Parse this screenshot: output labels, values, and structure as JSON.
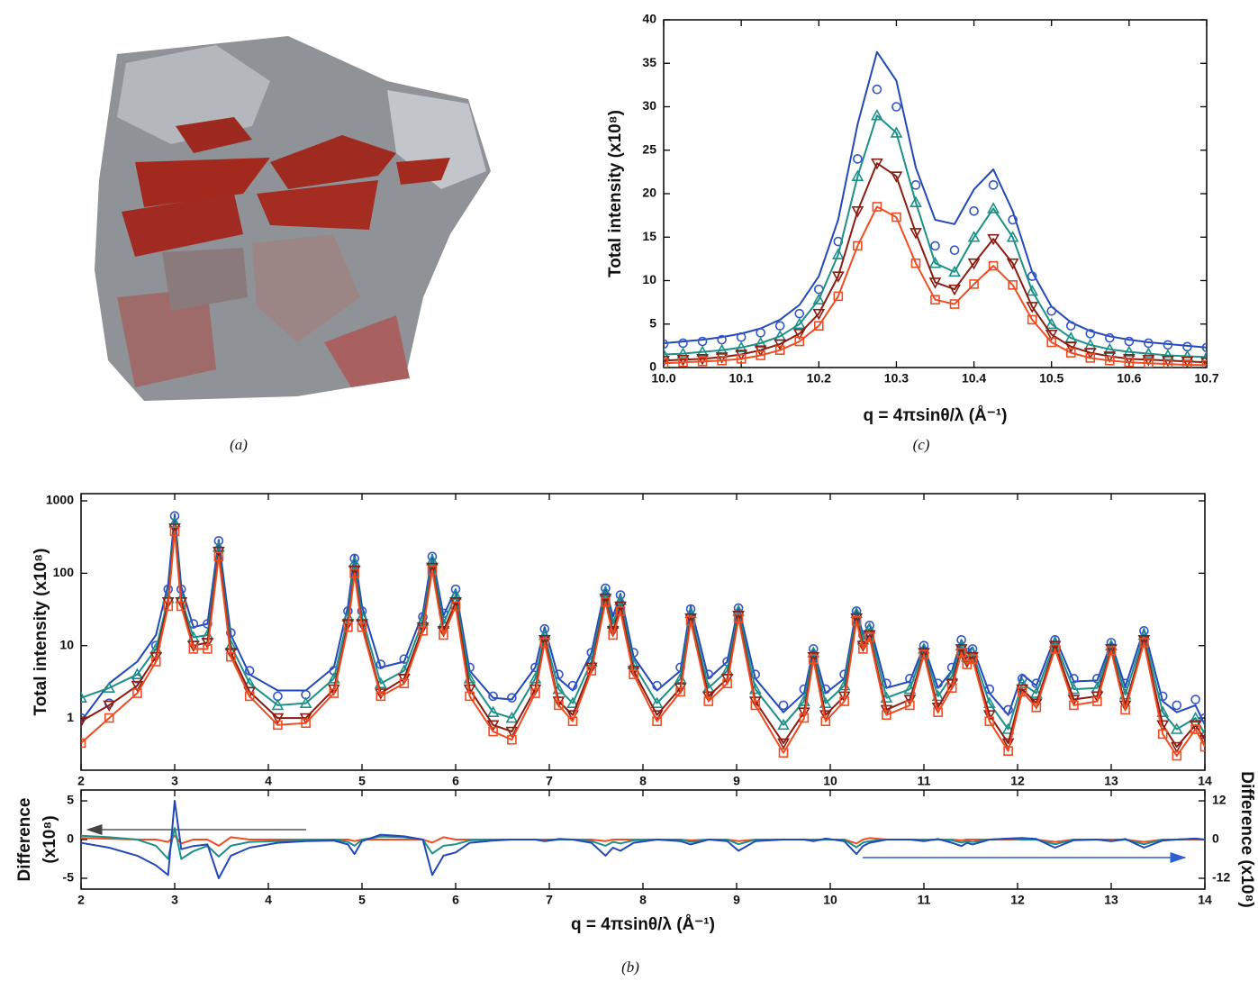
{
  "figure_a": {
    "caption": "(a)"
  },
  "chart_data": [
    {
      "type": "line",
      "caption": "(c)",
      "xlabel": "q = 4πsinθ/λ (Å⁻¹)",
      "ylabel": "Total intensity (x10⁸)",
      "xlim": [
        10.0,
        10.7
      ],
      "ylim": [
        0,
        40
      ],
      "xticks": [
        {
          "value": 10.0,
          "label": "10.0"
        },
        {
          "value": 10.1,
          "label": "10.1"
        },
        {
          "value": 10.2,
          "label": "10.2"
        },
        {
          "value": 10.3,
          "label": "10.3"
        },
        {
          "value": 10.4,
          "label": "10.4"
        },
        {
          "value": 10.5,
          "label": "10.5"
        },
        {
          "value": 10.6,
          "label": "10.6"
        },
        {
          "value": 10.7,
          "label": "10.7"
        }
      ],
      "yticks": [
        0,
        5,
        10,
        15,
        20,
        25,
        30,
        35,
        40
      ],
      "x": [
        10,
        10.025,
        10.05,
        10.075,
        10.1,
        10.125,
        10.15,
        10.175,
        10.2,
        10.225,
        10.25,
        10.275,
        10.3,
        10.325,
        10.35,
        10.375,
        10.4,
        10.425,
        10.45,
        10.475,
        10.5,
        10.525,
        10.55,
        10.575,
        10.6,
        10.625,
        10.65,
        10.675,
        10.7
      ],
      "series": [
        {
          "color": "#2348b8",
          "marker": "none",
          "line": true,
          "values": [
            2.8,
            3.0,
            3.2,
            3.5,
            3.9,
            4.5,
            5.5,
            7.2,
            10.5,
            17,
            28,
            36.3,
            33,
            23,
            17,
            16.5,
            20.5,
            22.8,
            18,
            11,
            7,
            5.2,
            4.2,
            3.6,
            3.2,
            2.9,
            2.7,
            2.5,
            2.3
          ]
        },
        {
          "color": "#3355c8",
          "marker": "circle",
          "line": false,
          "values": [
            2.7,
            2.8,
            3.0,
            3.2,
            3.5,
            4.0,
            4.8,
            6.2,
            9.0,
            14.5,
            24,
            32,
            30,
            21,
            14,
            13.5,
            18,
            21,
            17,
            10.5,
            6.5,
            4.8,
            3.9,
            3.4,
            3.0,
            2.8,
            2.6,
            2.4,
            2.3
          ]
        },
        {
          "color": "#1c9088",
          "marker": "triangle-up",
          "line": true,
          "values": [
            1.5,
            1.6,
            1.8,
            2.0,
            2.3,
            2.8,
            3.6,
            5.0,
            7.8,
            13,
            22,
            29,
            27,
            19,
            12,
            11,
            15,
            18.3,
            15,
            8.8,
            5.0,
            3.4,
            2.6,
            2.1,
            1.8,
            1.6,
            1.4,
            1.3,
            1.2
          ]
        },
        {
          "color": "#8a1c12",
          "marker": "triangle-down",
          "line": true,
          "values": [
            0.8,
            0.9,
            1.0,
            1.2,
            1.5,
            2.0,
            2.7,
            3.9,
            6.2,
            10.5,
            18,
            23.5,
            22,
            15.5,
            9.8,
            9.0,
            12,
            14.8,
            12,
            7.0,
            3.8,
            2.4,
            1.7,
            1.3,
            1.0,
            0.9,
            0.8,
            0.7,
            0.6
          ]
        },
        {
          "color": "#f04c22",
          "marker": "square",
          "line": true,
          "values": [
            0.5,
            0.6,
            0.7,
            0.8,
            1.0,
            1.4,
            2.0,
            3.0,
            4.8,
            8.2,
            14,
            18.5,
            17.3,
            12,
            7.8,
            7.3,
            9.6,
            11.7,
            9.5,
            5.5,
            2.9,
            1.7,
            1.1,
            0.8,
            0.6,
            0.5,
            0.4,
            0.3,
            0.3
          ]
        }
      ]
    },
    {
      "type": "line",
      "caption": "(b)",
      "ylabel": "Total intensity (x10⁸)",
      "ylog": true,
      "xlim": [
        2,
        14
      ],
      "ylim": [
        0.19,
        1258
      ],
      "xticks": [
        2,
        3,
        4,
        5,
        6,
        7,
        8,
        9,
        10,
        11,
        12,
        13,
        14
      ],
      "yticks": [
        1,
        10,
        100,
        1000
      ],
      "x": [
        2.0,
        2.3,
        2.6,
        2.8,
        2.93,
        3.0,
        3.07,
        3.2,
        3.35,
        3.47,
        3.6,
        3.8,
        4.1,
        4.4,
        4.7,
        4.85,
        4.92,
        5.0,
        5.2,
        5.45,
        5.65,
        5.75,
        5.87,
        6.0,
        6.15,
        6.4,
        6.6,
        6.85,
        6.95,
        7.1,
        7.25,
        7.45,
        7.6,
        7.68,
        7.76,
        7.9,
        8.15,
        8.4,
        8.51,
        8.7,
        8.9,
        9.02,
        9.2,
        9.5,
        9.72,
        9.82,
        9.95,
        10.15,
        10.28,
        10.35,
        10.42,
        10.6,
        10.85,
        11.0,
        11.15,
        11.3,
        11.4,
        11.46,
        11.52,
        11.7,
        11.9,
        12.05,
        12.2,
        12.4,
        12.6,
        12.85,
        13.0,
        13.15,
        13.35,
        13.55,
        13.7,
        13.9,
        14.0
      ],
      "series": [
        {
          "color": "#2348b8",
          "marker": "none",
          "line": true,
          "values": [
            0.9,
            3.0,
            6.0,
            14,
            70,
            650,
            65,
            18,
            20,
            290,
            14,
            4.0,
            2.4,
            2.4,
            5.0,
            35,
            180,
            35,
            5.0,
            6,
            28,
            180,
            26,
            60,
            4.5,
            1.9,
            1.8,
            5,
            18,
            3.5,
            2.4,
            8,
            65,
            25,
            52,
            7,
            2.4,
            4.5,
            35,
            3.5,
            6,
            35,
            3.5,
            1.2,
            2.2,
            9,
            2.2,
            3.5,
            32,
            14,
            20,
            2.6,
            3.2,
            10,
            2.6,
            4.5,
            12,
            8,
            9.5,
            2.2,
            1.1,
            4,
            2.8,
            13,
            3.2,
            3.3,
            11,
            2.7,
            17,
            1.7,
            1.2,
            1.5,
            0.8
          ]
        },
        {
          "color": "#3355c8",
          "marker": "circle",
          "line": false,
          "values": [
            1.0,
            1.6,
            3.5,
            10,
            60,
            620,
            60,
            20,
            20,
            280,
            15,
            4.5,
            2.0,
            2.1,
            4.5,
            30,
            160,
            30,
            5.5,
            6.5,
            25,
            170,
            28,
            60,
            5,
            2.0,
            1.9,
            5,
            17,
            4,
            2.8,
            8,
            62,
            25,
            50,
            8,
            2.8,
            5,
            32,
            4,
            6,
            33,
            4,
            1.5,
            2.5,
            9,
            2.5,
            4,
            30,
            14,
            19,
            3,
            3.5,
            10,
            3,
            5,
            12,
            8,
            9,
            2.5,
            1.3,
            3.5,
            3,
            12,
            3.5,
            3.5,
            11,
            3,
            16,
            2.0,
            1.5,
            1.8,
            1.0
          ]
        },
        {
          "color": "#1c9088",
          "marker": "triangle-up",
          "line": true,
          "values": [
            1.9,
            2.6,
            4.0,
            9,
            45,
            500,
            45,
            13,
            14,
            230,
            10,
            3.0,
            1.5,
            1.6,
            3.5,
            25,
            140,
            25,
            3.0,
            4.5,
            22,
            150,
            20,
            50,
            3.5,
            1.2,
            1.0,
            3.5,
            14,
            2.5,
            1.6,
            6,
            55,
            20,
            42,
            5.5,
            1.6,
            3.5,
            28,
            2.6,
            4.5,
            30,
            2.5,
            0.8,
            1.7,
            8,
            1.6,
            2.8,
            28,
            12,
            17,
            1.9,
            2.5,
            9,
            2.0,
            3.8,
            10,
            7,
            8,
            1.6,
            0.7,
            3.0,
            2.2,
            11,
            2.5,
            2.6,
            10,
            2.1,
            14,
            1.2,
            0.7,
            1.0,
            0.6
          ]
        },
        {
          "color": "#8a1c12",
          "marker": "triangle-down",
          "line": true,
          "values": [
            0.9,
            1.5,
            2.8,
            7,
            40,
            420,
            40,
            10,
            11,
            200,
            8,
            2.3,
            1.0,
            1.0,
            2.5,
            20,
            110,
            20,
            2.2,
            3.5,
            18,
            120,
            16,
            40,
            2.5,
            0.8,
            0.65,
            2.5,
            12,
            1.7,
            1.1,
            5,
            45,
            16,
            35,
            4.5,
            1.1,
            2.6,
            24,
            2.0,
            3.5,
            26,
            1.7,
            0.45,
            1.2,
            7,
            1.1,
            2.0,
            24,
            10,
            14,
            1.3,
            1.8,
            8,
            1.4,
            3.0,
            9,
            6,
            7,
            1.1,
            0.45,
            2.5,
            1.6,
            10,
            1.8,
            2.0,
            9,
            1.5,
            12,
            0.8,
            0.4,
            0.8,
            0.5
          ]
        },
        {
          "color": "#f04c22",
          "marker": "square",
          "line": true,
          "values": [
            0.45,
            1.0,
            2.2,
            6,
            35,
            380,
            35,
            9,
            9,
            170,
            7,
            2.0,
            0.8,
            0.85,
            2.2,
            18,
            100,
            18,
            2.0,
            3.0,
            16,
            110,
            14,
            35,
            2.0,
            0.65,
            0.5,
            2.2,
            11,
            1.5,
            0.9,
            4.5,
            40,
            14,
            30,
            4,
            0.9,
            2.3,
            22,
            1.7,
            3.0,
            24,
            1.5,
            0.33,
            1.0,
            6.5,
            0.9,
            1.7,
            22,
            9,
            13,
            1.1,
            1.5,
            7.5,
            1.2,
            2.6,
            8,
            5.5,
            6.5,
            0.9,
            0.35,
            2.3,
            1.4,
            9,
            1.5,
            1.7,
            8.5,
            1.3,
            11,
            0.6,
            0.3,
            0.7,
            0.4
          ]
        }
      ]
    },
    {
      "type": "line",
      "xlabel": "q = 4πsinθ/λ (Å⁻¹)",
      "ylabel": [
        "Difference",
        "(x10⁸)"
      ],
      "y2label": "Difference (x10⁸)",
      "xlim": [
        2,
        14
      ],
      "ylim": [
        -6.4,
        6.4
      ],
      "y2lim": [
        -15.36,
        15.36
      ],
      "xticks": [
        2,
        3,
        4,
        5,
        6,
        7,
        8,
        9,
        10,
        11,
        12,
        13,
        14
      ],
      "yticks": [
        -5,
        0,
        5
      ],
      "y2ticks": [
        -12,
        0,
        12
      ],
      "x": [
        2.0,
        2.3,
        2.6,
        2.8,
        2.93,
        3.0,
        3.07,
        3.2,
        3.35,
        3.47,
        3.6,
        3.8,
        4.1,
        4.4,
        4.7,
        4.85,
        4.92,
        5.0,
        5.2,
        5.45,
        5.65,
        5.75,
        5.87,
        6.0,
        6.15,
        6.4,
        6.6,
        6.85,
        6.95,
        7.1,
        7.25,
        7.45,
        7.6,
        7.68,
        7.76,
        7.9,
        8.15,
        8.4,
        8.51,
        8.7,
        8.9,
        9.02,
        9.2,
        9.5,
        9.72,
        9.82,
        9.95,
        10.15,
        10.28,
        10.35,
        10.42,
        10.6,
        10.85,
        11.0,
        11.15,
        11.3,
        11.4,
        11.46,
        11.52,
        11.7,
        11.9,
        12.05,
        12.2,
        12.4,
        12.6,
        12.85,
        13.0,
        13.15,
        13.35,
        13.55,
        13.7,
        13.9,
        14.0
      ],
      "series": [
        {
          "color": "#f04c22",
          "marker": "none",
          "line": true,
          "values": [
            0.2,
            0.1,
            0,
            0,
            -0.3,
            0.5,
            -0.5,
            0,
            0,
            -0.8,
            0.3,
            0,
            0,
            0,
            0,
            0,
            -0.2,
            0,
            0,
            0,
            0,
            -0.4,
            0.3,
            0,
            0,
            0,
            0,
            0,
            0,
            0,
            0,
            0,
            -0.2,
            0,
            0,
            0,
            0,
            0,
            -0.1,
            0,
            0,
            -0.2,
            0,
            0,
            0,
            0,
            0,
            0,
            -0.5,
            0,
            0.2,
            0,
            0,
            0,
            0,
            0,
            -0.1,
            0,
            0,
            0,
            0,
            0,
            0,
            -0.3,
            0,
            0,
            0,
            0,
            -0.3,
            0,
            0,
            0,
            0
          ]
        },
        {
          "color": "#1c9088",
          "marker": "none",
          "line": true,
          "values": [
            0.5,
            0.3,
            0,
            -0.8,
            -2.5,
            1.5,
            -2.5,
            -1.5,
            -0.8,
            -2.2,
            -0.8,
            -0.3,
            -0.2,
            -0.1,
            0,
            -0.3,
            -0.8,
            0,
            0.4,
            0.3,
            0,
            -1.8,
            -0.8,
            -0.6,
            -0.1,
            0,
            0,
            0,
            -0.2,
            0,
            0,
            -0.2,
            -0.8,
            -0.3,
            -0.5,
            -0.1,
            0,
            0,
            -0.3,
            0,
            0,
            -0.6,
            0,
            0,
            0,
            -0.1,
            0,
            0,
            -1.0,
            -0.4,
            -0.2,
            0,
            0,
            -0.1,
            0,
            -0.1,
            -0.4,
            -0.2,
            -0.3,
            0,
            0.1,
            0,
            0,
            -0.6,
            0,
            0,
            -0.2,
            0,
            -0.6,
            0,
            0,
            0.1,
            0
          ]
        },
        {
          "color": "#2348b8",
          "marker": "none",
          "line": true,
          "axis": "y2",
          "values": [
            -1,
            -2.5,
            -5,
            -8,
            -11,
            12,
            -3,
            -2,
            -1.5,
            -12,
            -5,
            -2.5,
            -1,
            -0.5,
            -0.3,
            -1.5,
            -4.5,
            -0.5,
            1.5,
            1.0,
            0,
            -11,
            -5,
            -4,
            -1,
            -0.3,
            0,
            0,
            -0.5,
            0.2,
            0,
            -1,
            -5,
            -2.5,
            -3.5,
            -1,
            0,
            -0.5,
            -1.5,
            0,
            -0.5,
            -3.5,
            -0.5,
            0,
            0,
            -0.5,
            0.3,
            -0.5,
            -4.5,
            -2,
            -1,
            0,
            0,
            -0.5,
            0.2,
            -1,
            -2,
            -1,
            -1.5,
            0,
            0.3,
            0.5,
            0.2,
            -2.5,
            -0.2,
            0,
            -0.5,
            0.2,
            -2.5,
            -0.3,
            0,
            0.3,
            0
          ]
        }
      ]
    }
  ]
}
